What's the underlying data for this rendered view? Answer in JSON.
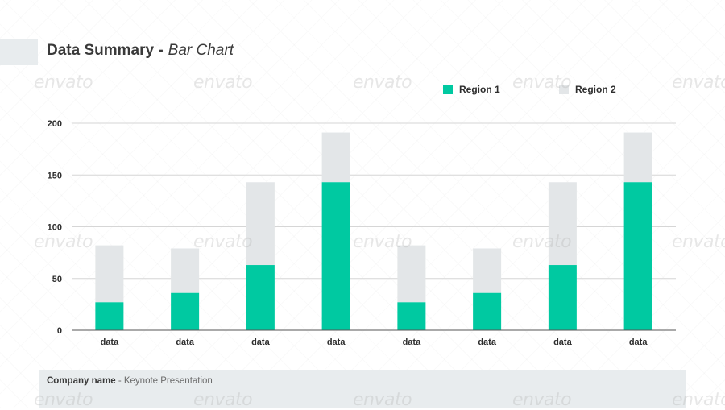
{
  "header": {
    "title": "Data Summary -",
    "subtitle": "Bar Chart"
  },
  "colors": {
    "region1": "#00c9a1",
    "region2": "#e3e6e8",
    "grid": "#d6d6d6",
    "axis": "#555555"
  },
  "chart_data": {
    "type": "bar",
    "stacked": true,
    "categories": [
      "data",
      "data",
      "data",
      "data",
      "data",
      "data",
      "data",
      "data"
    ],
    "series": [
      {
        "name": "Region 1",
        "values": [
          27,
          36,
          63,
          143,
          27,
          36,
          63,
          143
        ]
      },
      {
        "name": "Region 2",
        "values": [
          55,
          43,
          80,
          48,
          55,
          43,
          80,
          48
        ]
      }
    ],
    "yticks": [
      0,
      50,
      100,
      150,
      200
    ],
    "ylim": [
      0,
      200
    ],
    "grid": true,
    "legend_position": "top-right"
  },
  "footer": {
    "company": "Company name",
    "text": " - Keynote Presentation"
  },
  "watermark": "envato"
}
